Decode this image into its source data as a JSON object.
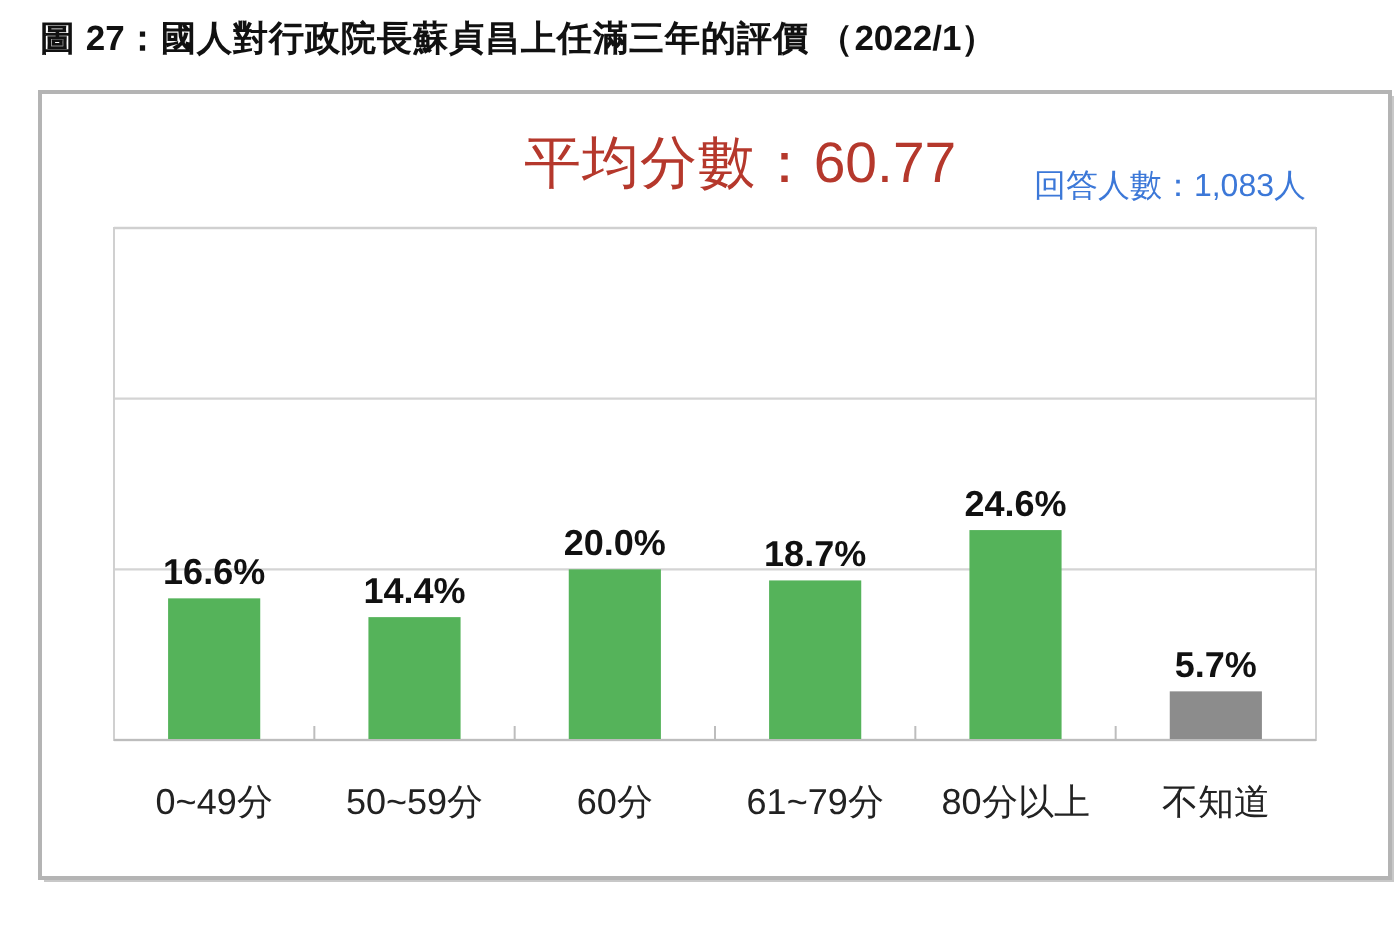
{
  "chart_data": {
    "type": "bar",
    "title": "圖 27：國人對行政院長蘇貞昌上任滿三年的評價 （2022/1）",
    "subtitle": "平均分數：60.77",
    "annotations": [
      "回答人數：1,083人"
    ],
    "categories": [
      "0~49分",
      "50~59分",
      "60分",
      "61~79分",
      "80分以上",
      "不知道"
    ],
    "values": [
      16.6,
      14.4,
      20.0,
      18.7,
      24.6,
      5.7
    ],
    "value_labels": [
      "16.6%",
      "14.4%",
      "20.0%",
      "18.7%",
      "24.6%",
      "5.7%"
    ],
    "colors": [
      "#55b35a",
      "#55b35a",
      "#55b35a",
      "#55b35a",
      "#55b35a",
      "#8c8c8c"
    ],
    "ylim": [
      0,
      60
    ],
    "yticks": [
      {
        "value": 0,
        "label": null
      },
      {
        "value": 20,
        "label": null
      },
      {
        "value": 40,
        "label": null
      },
      {
        "value": 60,
        "label": null
      }
    ],
    "grid": "y",
    "tick_labels": "x"
  }
}
